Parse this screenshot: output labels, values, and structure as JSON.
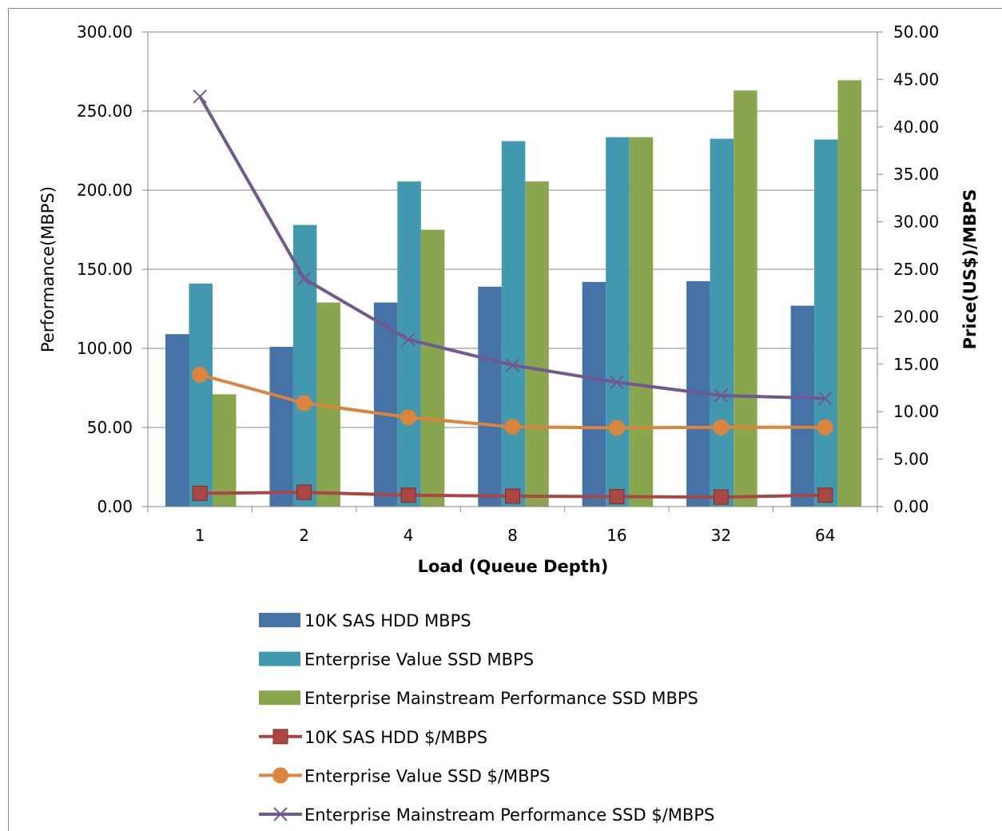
{
  "chart_data": {
    "type": "bar",
    "categories": [
      "1",
      "2",
      "4",
      "8",
      "16",
      "32",
      "64"
    ],
    "xlabel": "Load (Queue Depth)",
    "ylabel": "Performance(MBPS)",
    "y2label": "Price(US$)/MBPS",
    "ylim": [
      0,
      300
    ],
    "y2lim": [
      0,
      50
    ],
    "y_ticks": [
      "0.00",
      "50.00",
      "100.00",
      "150.00",
      "200.00",
      "250.00",
      "300.00"
    ],
    "y2_ticks": [
      "0.00",
      "5.00",
      "10.00",
      "15.00",
      "20.00",
      "25.00",
      "30.00",
      "35.00",
      "40.00",
      "45.00",
      "50.00"
    ],
    "grid": true,
    "legend_position": "bottom",
    "series": [
      {
        "name": "10K SAS HDD MBPS",
        "type": "bar",
        "axis": "left",
        "color": "#4572a7",
        "values": [
          109,
          101,
          129,
          139,
          142,
          142.5,
          127
        ]
      },
      {
        "name": "Enterprise Value SSD MBPS",
        "type": "bar",
        "axis": "left",
        "color": "#4198af",
        "values": [
          141,
          178,
          205.5,
          231,
          233.5,
          232.5,
          232
        ]
      },
      {
        "name": "Enterprise Mainstream Performance SSD MBPS",
        "type": "bar",
        "axis": "left",
        "color": "#89a54e",
        "values": [
          71,
          129,
          175,
          205.5,
          233.5,
          263,
          269.5
        ]
      },
      {
        "name": "10K SAS HDD $/MBPS",
        "type": "line",
        "axis": "right",
        "marker": "square",
        "color": "#aa4643",
        "values": [
          1.4,
          1.5,
          1.2,
          1.1,
          1.05,
          1.0,
          1.2
        ]
      },
      {
        "name": "Enterprise Value SSD $/MBPS",
        "type": "line",
        "axis": "right",
        "marker": "circle",
        "color": "#db843d",
        "values": [
          13.9,
          10.9,
          9.4,
          8.4,
          8.3,
          8.35,
          8.35
        ]
      },
      {
        "name": "Enterprise Mainstream Performance SSD $/MBPS",
        "type": "line",
        "axis": "right",
        "marker": "x",
        "color": "#71588f",
        "values": [
          43.2,
          24.0,
          17.6,
          14.9,
          13.1,
          11.7,
          11.4
        ]
      }
    ]
  }
}
